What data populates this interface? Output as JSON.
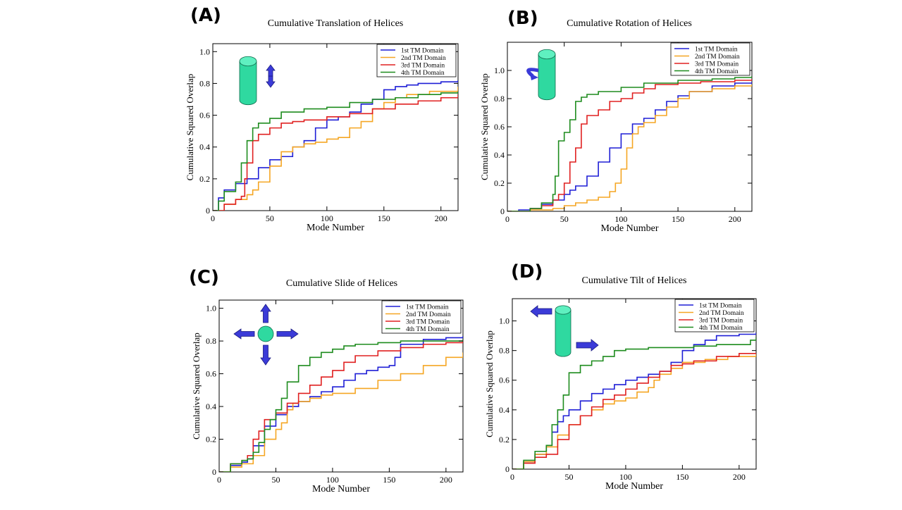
{
  "colors": {
    "series": [
      "#1f1fd6",
      "#f5a623",
      "#e02020",
      "#1e8c1e"
    ],
    "icon_fill": "#2fd9a0",
    "arrow_fill": "#3b3bd8"
  },
  "chart_data": [
    {
      "letter": "(A)",
      "type": "line",
      "title": "Cumulative Translation of Helices",
      "xlabel": "Mode Number",
      "ylabel": "Cumulative Squared Overlap",
      "xlim": [
        0,
        215
      ],
      "ylim": [
        0,
        1.05
      ],
      "xticks": [
        0,
        50,
        100,
        150,
        200
      ],
      "yticks": [
        0,
        0.2,
        0.4,
        0.6,
        0.8,
        1.0
      ],
      "yticklabels": [
        "0",
        "0.2",
        "0.4",
        "0.6",
        "0.8",
        "1.0"
      ],
      "icon": "cylinder-translate",
      "series": [
        {
          "name": "1st TM Domain",
          "x": [
            0,
            5,
            10,
            20,
            30,
            40,
            50,
            60,
            70,
            80,
            90,
            100,
            110,
            120,
            130,
            140,
            150,
            160,
            170,
            180,
            200,
            215
          ],
          "values": [
            0,
            0.08,
            0.13,
            0.17,
            0.2,
            0.27,
            0.32,
            0.34,
            0.4,
            0.44,
            0.52,
            0.57,
            0.59,
            0.62,
            0.67,
            0.7,
            0.76,
            0.78,
            0.79,
            0.8,
            0.81,
            0.82
          ]
        },
        {
          "name": "2nd TM Domain",
          "x": [
            0,
            10,
            20,
            30,
            35,
            40,
            50,
            60,
            70,
            80,
            90,
            100,
            110,
            120,
            130,
            140,
            150,
            160,
            170,
            190,
            215
          ],
          "values": [
            0,
            0.04,
            0.07,
            0.1,
            0.13,
            0.18,
            0.28,
            0.37,
            0.4,
            0.42,
            0.43,
            0.45,
            0.46,
            0.52,
            0.56,
            0.64,
            0.68,
            0.71,
            0.73,
            0.75,
            0.78
          ]
        },
        {
          "name": "3rd TM Domain",
          "x": [
            0,
            10,
            20,
            25,
            28,
            30,
            35,
            40,
            50,
            60,
            70,
            80,
            100,
            120,
            140,
            160,
            180,
            200,
            215
          ],
          "values": [
            0,
            0.04,
            0.07,
            0.09,
            0.2,
            0.3,
            0.44,
            0.48,
            0.52,
            0.55,
            0.56,
            0.57,
            0.59,
            0.61,
            0.64,
            0.67,
            0.69,
            0.71,
            0.73
          ]
        },
        {
          "name": "4th TM Domain",
          "x": [
            0,
            5,
            10,
            20,
            25,
            30,
            35,
            40,
            50,
            60,
            80,
            100,
            120,
            140,
            160,
            180,
            200,
            215
          ],
          "values": [
            0,
            0.06,
            0.12,
            0.18,
            0.3,
            0.44,
            0.52,
            0.55,
            0.58,
            0.62,
            0.64,
            0.65,
            0.68,
            0.7,
            0.71,
            0.73,
            0.74,
            0.75
          ]
        }
      ]
    },
    {
      "letter": "(B)",
      "type": "line",
      "title": "Cumulative Rotation of Helices",
      "xlabel": "Mode Number",
      "ylabel": "Cumulative Squared Overlap",
      "xlim": [
        0,
        215
      ],
      "ylim": [
        0,
        1.2
      ],
      "xticks": [
        0,
        50,
        100,
        150,
        200
      ],
      "yticks": [
        0,
        0.2,
        0.4,
        0.6,
        0.8,
        1.0
      ],
      "yticklabels": [
        "0",
        "0.2",
        "0.4",
        "0.6",
        "0.8",
        "1.0"
      ],
      "icon": "cylinder-rotate",
      "series": [
        {
          "name": "1st TM Domain",
          "x": [
            0,
            10,
            20,
            30,
            40,
            50,
            55,
            60,
            70,
            80,
            90,
            100,
            110,
            120,
            130,
            140,
            150,
            160,
            180,
            200,
            215
          ],
          "values": [
            0,
            0.01,
            0.02,
            0.05,
            0.08,
            0.12,
            0.15,
            0.18,
            0.25,
            0.35,
            0.45,
            0.55,
            0.62,
            0.66,
            0.72,
            0.78,
            0.82,
            0.85,
            0.89,
            0.91,
            0.92
          ]
        },
        {
          "name": "2nd TM Domain",
          "x": [
            0,
            20,
            40,
            50,
            60,
            70,
            80,
            90,
            95,
            100,
            105,
            110,
            115,
            120,
            130,
            140,
            150,
            160,
            180,
            200,
            215
          ],
          "values": [
            0,
            0.01,
            0.02,
            0.04,
            0.06,
            0.08,
            0.1,
            0.14,
            0.2,
            0.3,
            0.45,
            0.55,
            0.6,
            0.63,
            0.68,
            0.74,
            0.8,
            0.85,
            0.87,
            0.89,
            0.9
          ]
        },
        {
          "name": "3rd TM Domain",
          "x": [
            0,
            20,
            30,
            40,
            45,
            50,
            55,
            60,
            65,
            70,
            80,
            90,
            100,
            110,
            120,
            130,
            150,
            170,
            200,
            215
          ],
          "values": [
            0,
            0.02,
            0.04,
            0.08,
            0.12,
            0.2,
            0.35,
            0.45,
            0.62,
            0.68,
            0.72,
            0.78,
            0.8,
            0.84,
            0.87,
            0.9,
            0.91,
            0.92,
            0.93,
            0.94
          ]
        },
        {
          "name": "4th TM Domain",
          "x": [
            0,
            20,
            30,
            40,
            42,
            45,
            50,
            55,
            60,
            65,
            70,
            80,
            100,
            120,
            150,
            180,
            200,
            215
          ],
          "values": [
            0,
            0.02,
            0.06,
            0.12,
            0.25,
            0.5,
            0.56,
            0.65,
            0.78,
            0.81,
            0.83,
            0.85,
            0.88,
            0.91,
            0.93,
            0.94,
            0.95,
            0.96
          ]
        }
      ]
    },
    {
      "letter": "(C)",
      "type": "line",
      "title": "Cumulative Slide of Helices",
      "xlabel": "Mode Number",
      "ylabel": "Cumulative Squared Overlap",
      "xlim": [
        0,
        215
      ],
      "ylim": [
        0,
        1.05
      ],
      "xticks": [
        0,
        50,
        100,
        150,
        200
      ],
      "yticks": [
        0,
        0.2,
        0.4,
        0.6,
        0.8,
        1.0
      ],
      "yticklabels": [
        "0",
        "0.2",
        "0.4",
        "0.6",
        "0.8",
        "1.0"
      ],
      "icon": "circle-slide",
      "series": [
        {
          "name": "1st TM Domain",
          "x": [
            0,
            10,
            20,
            25,
            30,
            40,
            50,
            60,
            70,
            80,
            90,
            100,
            110,
            120,
            130,
            140,
            150,
            155,
            160,
            180,
            200,
            215
          ],
          "values": [
            0,
            0.04,
            0.06,
            0.08,
            0.16,
            0.28,
            0.35,
            0.4,
            0.43,
            0.46,
            0.49,
            0.52,
            0.56,
            0.6,
            0.62,
            0.64,
            0.65,
            0.7,
            0.78,
            0.81,
            0.82,
            0.83
          ]
        },
        {
          "name": "2nd TM Domain",
          "x": [
            0,
            10,
            20,
            30,
            40,
            50,
            55,
            60,
            65,
            70,
            80,
            90,
            100,
            120,
            140,
            160,
            180,
            200,
            215
          ],
          "values": [
            0,
            0.03,
            0.05,
            0.1,
            0.2,
            0.26,
            0.3,
            0.38,
            0.42,
            0.43,
            0.45,
            0.47,
            0.48,
            0.51,
            0.56,
            0.6,
            0.65,
            0.7,
            0.73
          ]
        },
        {
          "name": "3rd TM Domain",
          "x": [
            0,
            10,
            20,
            25,
            30,
            35,
            40,
            50,
            60,
            70,
            80,
            90,
            100,
            110,
            120,
            140,
            160,
            180,
            200,
            215
          ],
          "values": [
            0,
            0.05,
            0.07,
            0.1,
            0.2,
            0.25,
            0.32,
            0.36,
            0.42,
            0.48,
            0.53,
            0.58,
            0.62,
            0.67,
            0.71,
            0.74,
            0.76,
            0.78,
            0.79,
            0.8
          ]
        },
        {
          "name": "4th TM Domain",
          "x": [
            0,
            10,
            20,
            25,
            30,
            35,
            40,
            45,
            50,
            55,
            60,
            70,
            80,
            90,
            100,
            110,
            120,
            140,
            160,
            180,
            200,
            215
          ],
          "values": [
            0,
            0.05,
            0.07,
            0.08,
            0.12,
            0.18,
            0.26,
            0.32,
            0.38,
            0.45,
            0.55,
            0.65,
            0.7,
            0.73,
            0.75,
            0.77,
            0.78,
            0.79,
            0.8,
            0.8,
            0.8,
            0.81
          ]
        }
      ]
    },
    {
      "letter": "(D)",
      "type": "line",
      "title": "Cumulative Tilt of Helices",
      "xlabel": "Mode Number",
      "ylabel": "Cumulative Squared Overlap",
      "xlim": [
        0,
        215
      ],
      "ylim": [
        0,
        1.15
      ],
      "xticks": [
        0,
        50,
        100,
        150,
        200
      ],
      "yticks": [
        0,
        0.2,
        0.4,
        0.6,
        0.8,
        1.0
      ],
      "yticklabels": [
        "0",
        "0.2",
        "0.4",
        "0.6",
        "0.8",
        "1.0"
      ],
      "icon": "cylinder-tilt",
      "series": [
        {
          "name": "1st TM Domain",
          "x": [
            0,
            10,
            20,
            30,
            35,
            40,
            45,
            50,
            60,
            70,
            80,
            90,
            100,
            110,
            120,
            130,
            140,
            150,
            160,
            170,
            180,
            200,
            215
          ],
          "values": [
            0,
            0.05,
            0.1,
            0.16,
            0.25,
            0.32,
            0.36,
            0.4,
            0.46,
            0.51,
            0.54,
            0.57,
            0.6,
            0.62,
            0.64,
            0.66,
            0.72,
            0.8,
            0.84,
            0.87,
            0.9,
            0.91,
            0.92
          ]
        },
        {
          "name": "2nd TM Domain",
          "x": [
            0,
            10,
            20,
            30,
            40,
            50,
            60,
            70,
            80,
            90,
            100,
            110,
            120,
            125,
            130,
            140,
            150,
            170,
            190,
            215
          ],
          "values": [
            0,
            0.05,
            0.1,
            0.15,
            0.23,
            0.3,
            0.36,
            0.4,
            0.44,
            0.46,
            0.48,
            0.52,
            0.55,
            0.6,
            0.64,
            0.68,
            0.72,
            0.74,
            0.76,
            0.78
          ]
        },
        {
          "name": "3rd TM Domain",
          "x": [
            0,
            10,
            20,
            30,
            40,
            50,
            60,
            70,
            80,
            90,
            100,
            110,
            120,
            130,
            140,
            150,
            160,
            180,
            200,
            215
          ],
          "values": [
            0,
            0.04,
            0.08,
            0.1,
            0.2,
            0.3,
            0.36,
            0.42,
            0.47,
            0.5,
            0.54,
            0.58,
            0.62,
            0.66,
            0.7,
            0.71,
            0.73,
            0.76,
            0.78,
            0.78
          ]
        },
        {
          "name": "4th TM Domain",
          "x": [
            0,
            10,
            20,
            30,
            35,
            40,
            45,
            50,
            60,
            70,
            80,
            90,
            100,
            120,
            140,
            160,
            180,
            200,
            210,
            215
          ],
          "values": [
            0,
            0.06,
            0.12,
            0.16,
            0.3,
            0.4,
            0.5,
            0.65,
            0.7,
            0.73,
            0.76,
            0.8,
            0.81,
            0.82,
            0.82,
            0.83,
            0.84,
            0.84,
            0.87,
            0.89
          ]
        }
      ]
    }
  ]
}
